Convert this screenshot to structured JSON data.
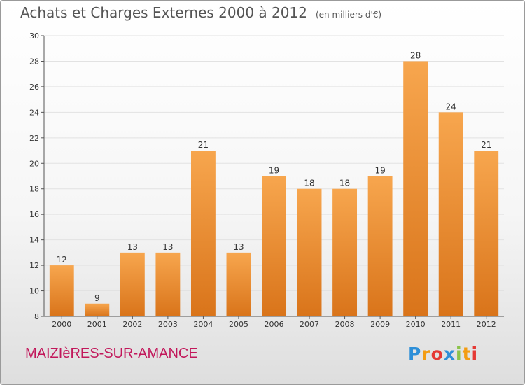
{
  "title": "Achats et Charges Externes 2000 à 2012",
  "subtitle": "(en milliers d'€)",
  "location": "MAIZIèRES-SUR-AMANCE",
  "logo": {
    "text": "Proxiti",
    "letters": [
      "P",
      "r",
      "o",
      "x",
      "i",
      "t",
      "i"
    ],
    "colors": [
      "#2e8fd8",
      "#f39c12",
      "#e53935",
      "#2e8fd8",
      "#8bc34a",
      "#f39c12",
      "#e53935"
    ]
  },
  "colors": {
    "bar_top": "#f7a64e",
    "bar_bottom": "#d9741a",
    "title": "#555555",
    "location": "#c2185b"
  },
  "chart_data": {
    "type": "bar",
    "title": "Achats et Charges Externes 2000 à 2012",
    "subtitle": "(en milliers d'€)",
    "categories": [
      "2000",
      "2001",
      "2002",
      "2003",
      "2004",
      "2005",
      "2006",
      "2007",
      "2008",
      "2009",
      "2010",
      "2011",
      "2012"
    ],
    "values": [
      12,
      9,
      13,
      13,
      21,
      13,
      19,
      18,
      18,
      19,
      28,
      24,
      21
    ],
    "data_labels": [
      "12",
      "9",
      "13",
      "13",
      "21",
      "13",
      "19",
      "18",
      "18",
      "19",
      "28",
      "24",
      "21"
    ],
    "ylim": [
      8,
      30
    ],
    "yticks": [
      8,
      10,
      12,
      14,
      16,
      18,
      20,
      22,
      24,
      26,
      28,
      30
    ],
    "grid": true
  }
}
